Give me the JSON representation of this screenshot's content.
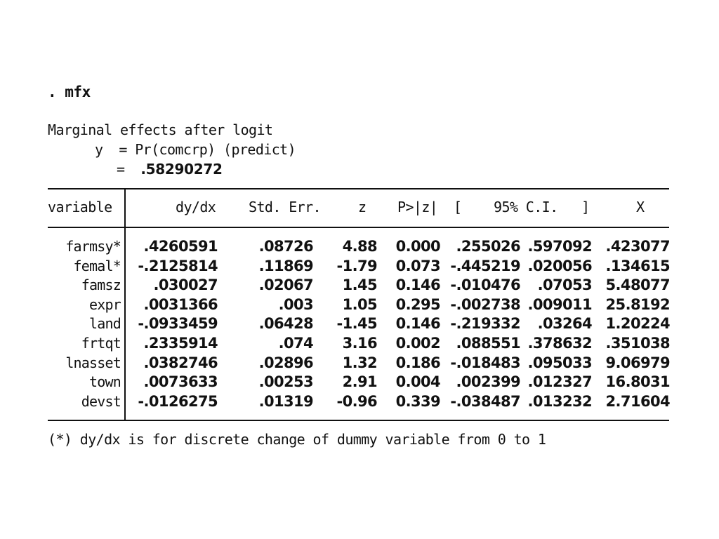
{
  "command": ". mfx",
  "header": {
    "line1": "Marginal effects after logit",
    "line2_label": "y  = Pr(comcrp) (predict)",
    "line3_eq": "=",
    "line3_value": ".58290272"
  },
  "columns": [
    "variable",
    "dy/dx",
    "Std. Err.",
    "z",
    "P>|z|",
    "[",
    "95% C.I.",
    "]",
    "X"
  ],
  "rows": [
    {
      "variable": "farmsy*",
      "dydx": ".4260591",
      "se": ".08726",
      "z": "4.88",
      "p": "0.000",
      "ci_low": ".255026",
      "ci_high": ".597092",
      "x": ".423077"
    },
    {
      "variable": "femal*",
      "dydx": "-.2125814",
      "se": ".11869",
      "z": "-1.79",
      "p": "0.073",
      "ci_low": "-.445219",
      "ci_high": ".020056",
      "x": ".134615"
    },
    {
      "variable": "famsz",
      "dydx": ".030027",
      "se": ".02067",
      "z": "1.45",
      "p": "0.146",
      "ci_low": "-.010476",
      "ci_high": ".07053",
      "x": "5.48077"
    },
    {
      "variable": "expr",
      "dydx": ".0031366",
      "se": ".003",
      "z": "1.05",
      "p": "0.295",
      "ci_low": "-.002738",
      "ci_high": ".009011",
      "x": "25.8192"
    },
    {
      "variable": "land",
      "dydx": "-.0933459",
      "se": ".06428",
      "z": "-1.45",
      "p": "0.146",
      "ci_low": "-.219332",
      "ci_high": ".03264",
      "x": "1.20224"
    },
    {
      "variable": "frtqt",
      "dydx": ".2335914",
      "se": ".074",
      "z": "3.16",
      "p": "0.002",
      "ci_low": ".088551",
      "ci_high": ".378632",
      "x": ".351038"
    },
    {
      "variable": "lnasset",
      "dydx": ".0382746",
      "se": ".02896",
      "z": "1.32",
      "p": "0.186",
      "ci_low": "-.018483",
      "ci_high": ".095033",
      "x": "9.06979"
    },
    {
      "variable": "town",
      "dydx": ".0073633",
      "se": ".00253",
      "z": "2.91",
      "p": "0.004",
      "ci_low": ".002399",
      "ci_high": ".012327",
      "x": "16.8031"
    },
    {
      "variable": "devst",
      "dydx": "-.0126275",
      "se": ".01319",
      "z": "-0.96",
      "p": "0.339",
      "ci_low": "-.038487",
      "ci_high": ".013232",
      "x": "2.71604"
    }
  ],
  "footnote": "(*) dy/dx is for discrete change of dummy variable from 0 to 1"
}
